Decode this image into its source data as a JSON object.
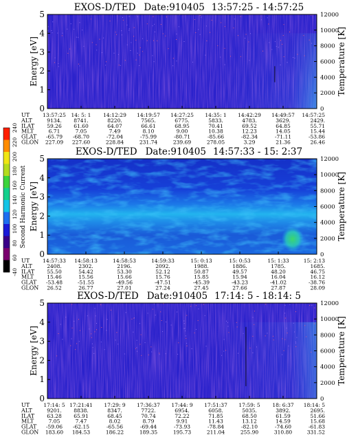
{
  "chart_data": [
    {
      "type": "heatmap",
      "title": "EXOS-D/TED",
      "date_label": "Date:910405",
      "time_range": "13:57:25 - 14:57:25",
      "ylabel": "Energy [eV]",
      "ylabel_right": "Temperature [K]",
      "ylim": [
        0,
        5
      ],
      "yticks": [
        "0",
        "1",
        "2",
        "3",
        "4",
        "5"
      ],
      "ylim_right": [
        0,
        12000
      ],
      "yticks_right": [
        "0",
        "2000",
        "4000",
        "6000",
        "8000",
        "10000",
        "12000"
      ],
      "rows": [
        {
          "label": "UT",
          "values": [
            "13:57:25",
            "14: 5: 1",
            "14:12:29",
            "14:19:57",
            "14:27:25",
            "14:35: 1",
            "14:42:29",
            "14:49:57",
            "14:57:25"
          ]
        },
        {
          "label": "ALT",
          "values": [
            "9134.",
            "8741.",
            "8220.",
            "7565.",
            "6775.",
            "5833.",
            "4783.",
            "3629.",
            "2429."
          ]
        },
        {
          "label": "ILAT",
          "values": [
            "59.26",
            "61.60",
            "64.07",
            "66.61",
            "68.95",
            "70.41",
            "69.52",
            "64.85",
            "55.71"
          ]
        },
        {
          "label": "MLT",
          "values": [
            "6.71",
            "7.05",
            "7.49",
            "8.10",
            "9.00",
            "10.38",
            "12.23",
            "14.05",
            "15.44"
          ]
        },
        {
          "label": "GLAT",
          "values": [
            "-65.79",
            "-68.70",
            "-72.04",
            "-75.99",
            "-80.71",
            "-85.66",
            "-82.34",
            "-71.11",
            "-53.86"
          ]
        },
        {
          "label": "GLON",
          "values": [
            "227.09",
            "227.60",
            "228.84",
            "231.74",
            "239.69",
            "278.05",
            "3.29",
            "21.36",
            "26.46"
          ]
        }
      ]
    },
    {
      "type": "heatmap",
      "title": "EXOS-D/TED",
      "date_label": "Date:910405",
      "time_range": "14:57:33 - 15: 2:37",
      "ylabel": "Energy [eV]",
      "ylabel_right": "Temperature [K]",
      "ylim": [
        0,
        5
      ],
      "yticks": [
        "0",
        "1",
        "2",
        "3",
        "4",
        "5"
      ],
      "ylim_right": [
        0,
        12000
      ],
      "yticks_right": [
        "0",
        "2000",
        "4000",
        "6000",
        "8000",
        "10000",
        "12000"
      ],
      "rows": [
        {
          "label": "UT",
          "values": [
            "14:57:33",
            "14:58:13",
            "14:58:53",
            "14:59:33",
            "15: 0:13",
            "15: 0:53",
            "15: 1:33",
            "15: 2:13"
          ]
        },
        {
          "label": "ALT",
          "values": [
            "2408.",
            "2302.",
            "2196.",
            "2092.",
            "1988.",
            "1886.",
            "1785.",
            "1685."
          ]
        },
        {
          "label": "ILAT",
          "values": [
            "55.50",
            "54.42",
            "53.30",
            "52.12",
            "50.87",
            "49.57",
            "48.20",
            "46.75"
          ]
        },
        {
          "label": "MLT",
          "values": [
            "15.46",
            "15.56",
            "15.66",
            "15.76",
            "15.85",
            "15.94",
            "16.04",
            "16.12"
          ]
        },
        {
          "label": "GLAT",
          "values": [
            "-53.48",
            "-51.55",
            "-49.56",
            "-47.51",
            "-45.39",
            "-43.23",
            "-41.02",
            "-38.76"
          ]
        },
        {
          "label": "GLON",
          "values": [
            "26.52",
            "26.77",
            "27.01",
            "27.24",
            "27.45",
            "27.66",
            "27.87",
            "28.09"
          ]
        }
      ]
    },
    {
      "type": "heatmap",
      "title": "EXOS-D/TED",
      "date_label": "Date:910405",
      "time_range": "17:14: 5 - 18:14: 5",
      "ylabel": "Energy [eV]",
      "ylabel_right": "Temperature [K]",
      "ylim": [
        0,
        5
      ],
      "yticks": [
        "0",
        "1",
        "2",
        "3",
        "4",
        "5"
      ],
      "ylim_right": [
        0,
        12000
      ],
      "yticks_right": [
        "0",
        "2000",
        "4000",
        "6000",
        "8000",
        "10000",
        "12000"
      ],
      "rows": [
        {
          "label": "UT",
          "values": [
            "17:14: 5",
            "17:21:41",
            "17:29: 9",
            "17:36:37",
            "17:44: 9",
            "17:51:37",
            "17:59: 5",
            "18: 6:37",
            "18:14: 5"
          ]
        },
        {
          "label": "ALT",
          "values": [
            "9201.",
            "8838.",
            "8347.",
            "7722.",
            "6954.",
            "6058.",
            "5035.",
            "3892.",
            "2695."
          ]
        },
        {
          "label": "ILAT",
          "values": [
            "63.28",
            "65.91",
            "68.45",
            "70.74",
            "72.22",
            "71.85",
            "68.50",
            "61.59",
            "51.66"
          ]
        },
        {
          "label": "MLT",
          "values": [
            "7.05",
            "7.47",
            "8.02",
            "8.79",
            "9.91",
            "11.43",
            "13.12",
            "14.59",
            "15.68"
          ]
        },
        {
          "label": "GLAT",
          "values": [
            "-59.06",
            "-62.15",
            "-65.56",
            "-69.44",
            "-73.93",
            "-78.84",
            "-82.10",
            "-74.60",
            "-61.83"
          ]
        },
        {
          "label": "GLON",
          "values": [
            "183.60",
            "184.53",
            "186.22",
            "189.35",
            "195.73",
            "211.04",
            "255.90",
            "310.80",
            "331.52"
          ]
        }
      ]
    }
  ],
  "colorbar": {
    "label": "Second Harmonic Current",
    "ticks": [
      "-40",
      "60",
      "80",
      "100",
      "120",
      "140",
      "160",
      "180",
      "200",
      "220",
      "240"
    ],
    "colors": [
      "#000000",
      "#7a006e",
      "#3a0088",
      "#1a1ad8",
      "#1e6ef0",
      "#14c4e6",
      "#14d08c",
      "#3cd43c",
      "#b4dc1e",
      "#f0e614",
      "#ff8c00",
      "#ff1e00"
    ]
  }
}
